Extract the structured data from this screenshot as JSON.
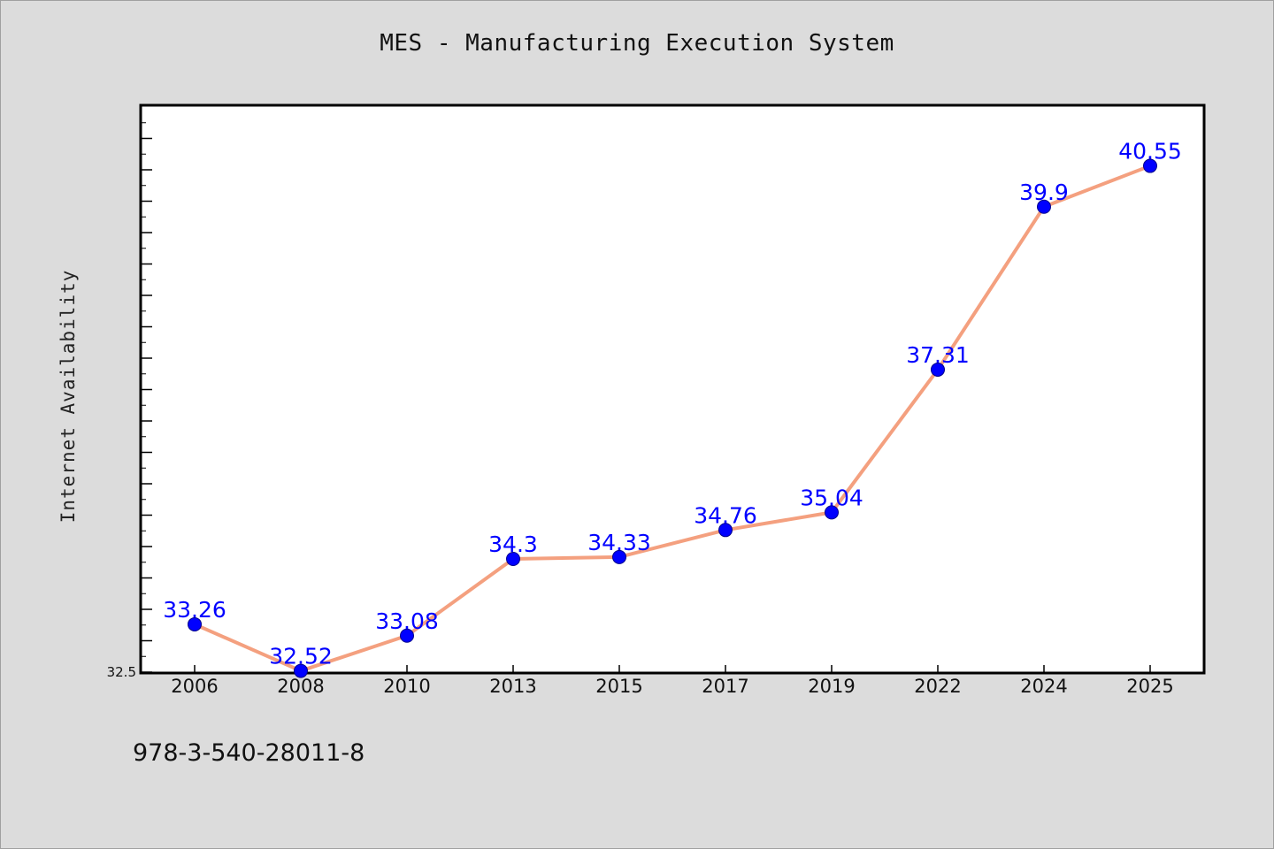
{
  "colors": {
    "background": "#dcdcdc",
    "plot_background": "#ffffff",
    "line": "#f4a07f",
    "marker": "#0000ff",
    "data_label": "#0000ff"
  },
  "footnote": "978-3-540-28011-8",
  "chart_data": {
    "type": "line",
    "title": "MES - Manufacturing Execution System",
    "xlabel": "",
    "ylabel": "Internet Availability",
    "categories": [
      "2006",
      "2008",
      "2010",
      "2013",
      "2015",
      "2017",
      "2019",
      "2022",
      "2024",
      "2025"
    ],
    "series": [
      {
        "values": [
          33.26,
          32.52,
          33.08,
          34.3,
          34.33,
          34.76,
          35.04,
          37.31,
          39.9,
          40.55
        ],
        "labels": [
          "33.26",
          "32.52",
          "33.08",
          "34.3",
          "34.33",
          "34.76",
          "35.04",
          "37.31",
          "39.9",
          "40.55"
        ]
      }
    ],
    "ylim": [
      32.5,
      41.5
    ],
    "yticks_labeled": [
      "32.5"
    ],
    "grid": false,
    "legend": "none"
  }
}
